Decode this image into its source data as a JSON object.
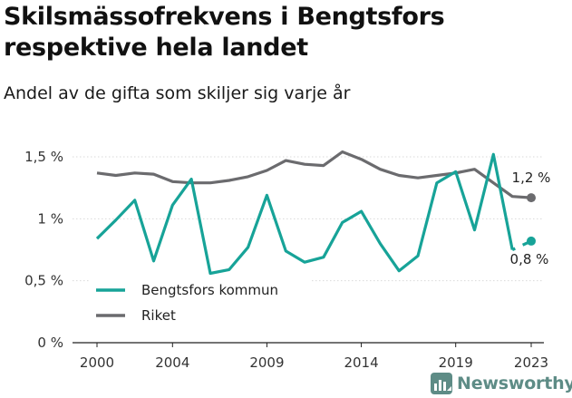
{
  "header": {
    "title": "Skilsmässofrekvens i Bengtsfors respektive hela landet",
    "subtitle": "Andel av de gifta som skiljer sig varje år"
  },
  "branding": {
    "name": "Newsworthy",
    "color": "#5e8c86",
    "icon": "bar-chart-logo-icon"
  },
  "chart_data": {
    "type": "line",
    "title": "Skilsmässofrekvens i Bengtsfors respektive hela landet",
    "subtitle": "Andel av de gifta som skiljer sig varje år",
    "xlabel": "",
    "ylabel": "",
    "x_ticks": [
      "2000",
      "2004",
      "2009",
      "2014",
      "2019",
      "2023"
    ],
    "y_ticks": [
      "0 %",
      "0,5 %",
      "1 %",
      "1,5 %"
    ],
    "ylim": [
      0,
      1.6
    ],
    "grid": "horizontal",
    "legend_position": "bottom-left",
    "x": [
      2000,
      2001,
      2002,
      2003,
      2004,
      2005,
      2006,
      2007,
      2008,
      2009,
      2010,
      2011,
      2012,
      2013,
      2014,
      2015,
      2016,
      2017,
      2018,
      2019,
      2020,
      2021,
      2022,
      2023
    ],
    "series": [
      {
        "name": "Bengtsfors kommun",
        "color": "#17a398",
        "values": [
          0.84,
          0.99,
          1.15,
          0.66,
          1.11,
          1.32,
          0.56,
          0.59,
          0.77,
          1.19,
          0.74,
          0.65,
          0.69,
          0.97,
          1.06,
          0.8,
          0.58,
          0.7,
          1.29,
          1.38,
          0.91,
          1.52,
          0.75,
          0.82
        ],
        "gap_before_last": true,
        "end_label": "0,8 %"
      },
      {
        "name": "Riket",
        "color": "#6b6b6e",
        "values": [
          1.37,
          1.35,
          1.37,
          1.36,
          1.3,
          1.29,
          1.29,
          1.31,
          1.34,
          1.39,
          1.47,
          1.44,
          1.43,
          1.54,
          1.48,
          1.4,
          1.35,
          1.33,
          1.35,
          1.37,
          1.4,
          1.29,
          1.18,
          1.17
        ],
        "end_label": "1,2 %"
      }
    ]
  }
}
